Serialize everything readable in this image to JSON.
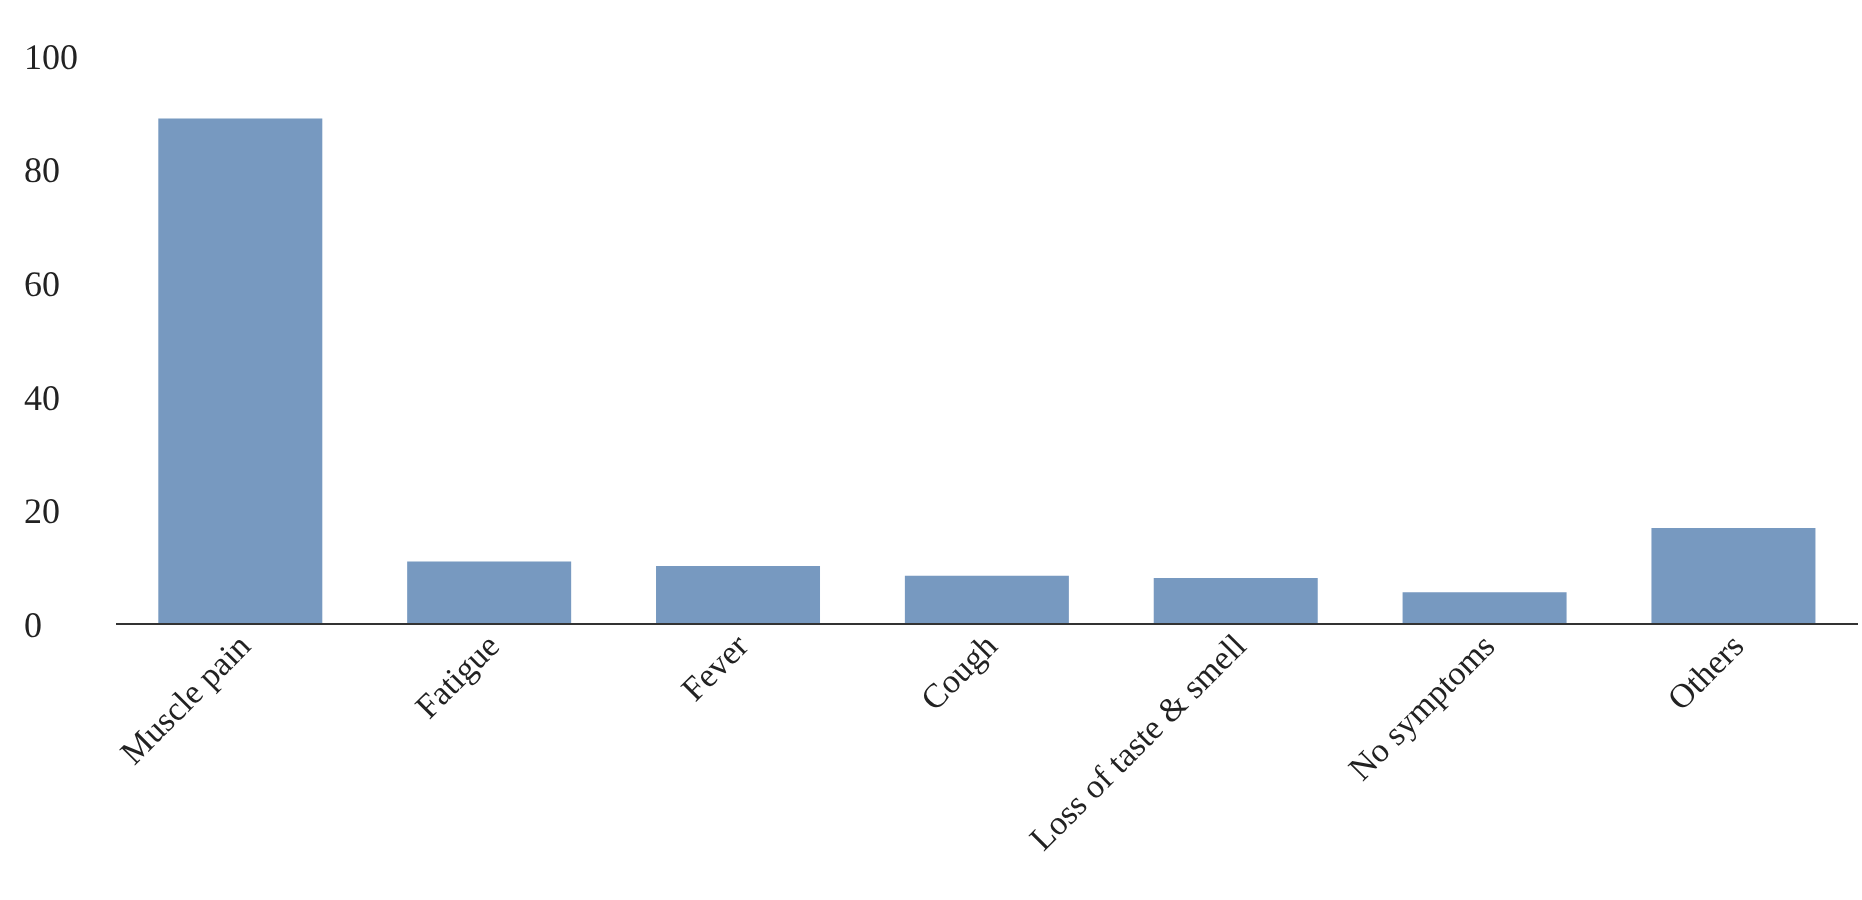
{
  "chart_data": {
    "type": "bar",
    "categories": [
      "Muscle pain",
      "Fatigue",
      "Fever",
      "Cough",
      "Loss of taste & smell",
      "No symptoms",
      "Others"
    ],
    "values": [
      89,
      11,
      10.2,
      8.5,
      8.1,
      5.6,
      16.9
    ],
    "color": "#7799c0",
    "ylim": [
      0,
      100
    ],
    "yticks": [
      0,
      20,
      40,
      60,
      80,
      100
    ],
    "grid": false,
    "legend": false
  }
}
